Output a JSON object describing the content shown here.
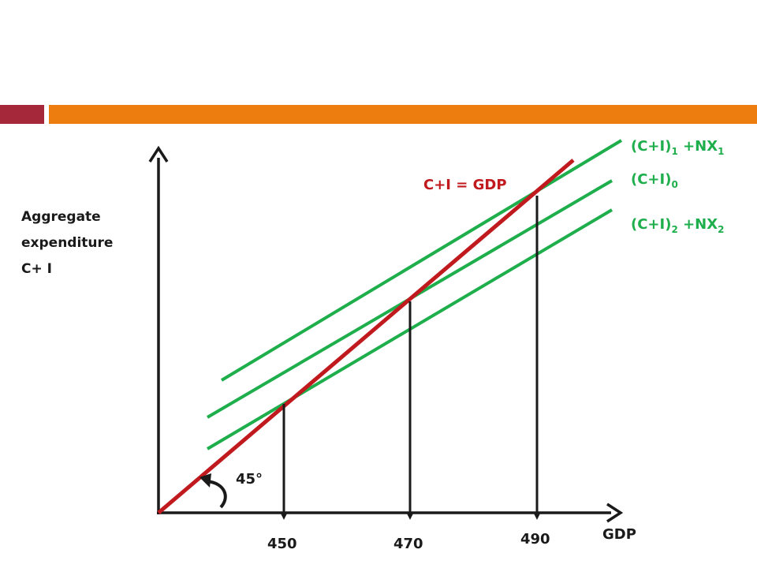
{
  "colors": {
    "accent_dark_red": "#A4283A",
    "accent_orange": "#ED7D0E",
    "red_line": "#C0191E",
    "green_line": "#1EAE4C",
    "axis": "#1a1a1a"
  },
  "y_axis_label": [
    "Aggregate",
    "expenditure",
    "C+ I"
  ],
  "x_axis_label": "GDP",
  "angle_label": "45°",
  "angle_icon": "curved-arrow-icon",
  "red_line_label": "C+I = GDP",
  "curves": [
    {
      "main": "(C+I)",
      "sub1": "1",
      "rest": " +NX",
      "sub2": "1"
    },
    {
      "main": "(C+I)",
      "sub1": "0",
      "rest": "",
      "sub2": ""
    },
    {
      "main": "(C+I)",
      "sub1": "2",
      "rest": " +NX",
      "sub2": "2"
    }
  ],
  "x_ticks": [
    "450",
    "470",
    "490"
  ]
}
